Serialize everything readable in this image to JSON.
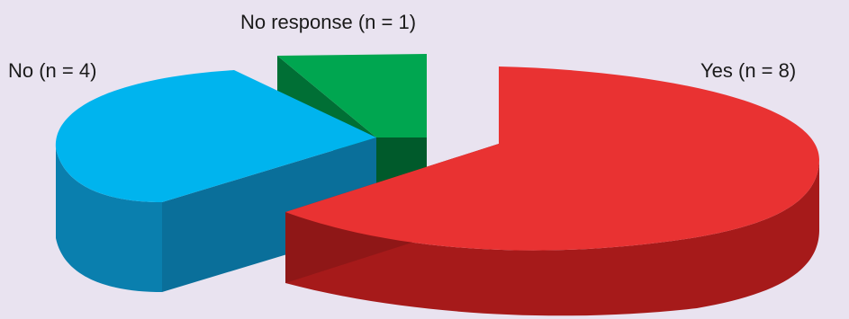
{
  "chart_data": {
    "type": "pie",
    "title": "",
    "slices": [
      {
        "label": "Yes (n = 8)",
        "value": 8,
        "color": "#e93232"
      },
      {
        "label": "No (n = 4)",
        "value": 4,
        "color": "#00b4ee"
      },
      {
        "label": "No response (n = 1)",
        "value": 1,
        "color": "#00a650"
      }
    ],
    "style": "3d-exploded"
  }
}
